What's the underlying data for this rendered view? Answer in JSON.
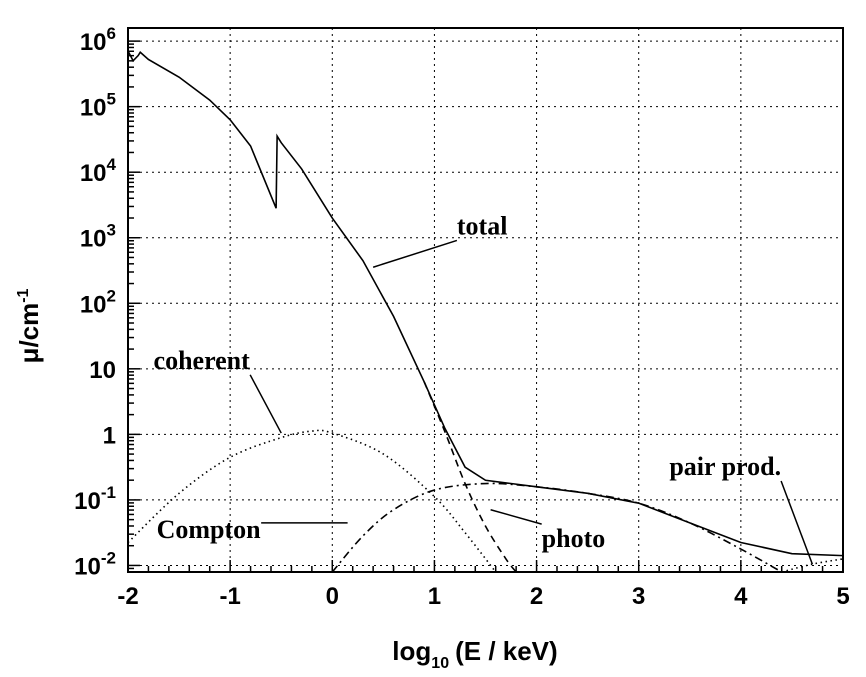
{
  "chart_data": {
    "type": "line",
    "title": "",
    "xlabel": {
      "prefix": "log",
      "sub": "10",
      "suffix": "(E / keV)"
    },
    "ylabel": {
      "base": "μ/cm",
      "sup": "-1"
    },
    "xlim": [
      -2,
      5
    ],
    "ylim_log10": [
      -2.1,
      6.2
    ],
    "yscale": "log",
    "grid": true,
    "x_ticks": [
      "-2",
      "-1",
      "0",
      "1",
      "2",
      "3",
      "4",
      "5"
    ],
    "y_ticks": [
      {
        "log": 6,
        "base": "10",
        "sup": "6"
      },
      {
        "log": 5,
        "base": "10",
        "sup": "5"
      },
      {
        "log": 4,
        "base": "10",
        "sup": "4"
      },
      {
        "log": 3,
        "base": "10",
        "sup": "3"
      },
      {
        "log": 2,
        "base": "10",
        "sup": "2"
      },
      {
        "log": 1,
        "base": "10",
        "sup": ""
      },
      {
        "log": 0,
        "base": "1",
        "sup": ""
      },
      {
        "log": -1,
        "base": "10",
        "sup": "-1"
      },
      {
        "log": -2,
        "base": "10",
        "sup": "-2"
      }
    ],
    "series": [
      {
        "name": "total",
        "style": "solid",
        "points_log10": [
          [
            -2,
            5.85
          ],
          [
            -1.95,
            5.7
          ],
          [
            -1.9,
            5.78
          ],
          [
            -1.88,
            5.83
          ],
          [
            -1.8,
            5.72
          ],
          [
            -1.5,
            5.45
          ],
          [
            -1.2,
            5.1
          ],
          [
            -1.0,
            4.8
          ],
          [
            -0.8,
            4.4
          ],
          [
            -0.55,
            3.45
          ],
          [
            -0.54,
            4.55
          ],
          [
            -0.5,
            4.45
          ],
          [
            -0.3,
            4.05
          ],
          [
            0,
            3.3
          ],
          [
            0.3,
            2.65
          ],
          [
            0.6,
            1.8
          ],
          [
            0.9,
            0.8
          ],
          [
            1.1,
            0.1
          ],
          [
            1.3,
            -0.5
          ],
          [
            1.5,
            -0.7
          ],
          [
            2.0,
            -0.8
          ],
          [
            2.5,
            -0.9
          ],
          [
            3.0,
            -1.05
          ],
          [
            3.5,
            -1.35
          ],
          [
            4.0,
            -1.65
          ],
          [
            4.5,
            -1.82
          ],
          [
            5.0,
            -1.85
          ]
        ]
      },
      {
        "name": "photo",
        "style": "dashed",
        "points_log10": [
          [
            0.9,
            0.8
          ],
          [
            1.1,
            0.05
          ],
          [
            1.3,
            -0.75
          ],
          [
            1.5,
            -1.4
          ],
          [
            1.7,
            -1.9
          ],
          [
            1.8,
            -2.1
          ]
        ]
      },
      {
        "name": "coherent",
        "style": "dotted",
        "points_log10": [
          [
            -2,
            -1.65
          ],
          [
            -1.5,
            -0.9
          ],
          [
            -1.0,
            -0.35
          ],
          [
            -0.5,
            -0.05
          ],
          [
            -0.2,
            0.05
          ],
          [
            0,
            0.02
          ],
          [
            0.5,
            -0.3
          ],
          [
            1.0,
            -0.95
          ],
          [
            1.3,
            -1.5
          ],
          [
            1.6,
            -2.1
          ]
        ]
      },
      {
        "name": "Compton",
        "style": "dashdot",
        "points_log10": [
          [
            0,
            -2.1
          ],
          [
            0.3,
            -1.55
          ],
          [
            0.6,
            -1.15
          ],
          [
            1.0,
            -0.85
          ],
          [
            1.5,
            -0.75
          ],
          [
            2.0,
            -0.8
          ],
          [
            2.5,
            -0.9
          ],
          [
            3.0,
            -1.05
          ],
          [
            3.5,
            -1.35
          ],
          [
            4.0,
            -1.75
          ],
          [
            4.4,
            -2.1
          ]
        ]
      },
      {
        "name": "pair prod.",
        "style": "dotted",
        "points_log10": [
          [
            4.4,
            -2.1
          ],
          [
            4.7,
            -1.98
          ],
          [
            5.0,
            -1.9
          ]
        ]
      }
    ],
    "annotations": [
      {
        "text": "total",
        "text_pos": [
          1.22,
          3.05
        ],
        "target": [
          0.4,
          2.55
        ]
      },
      {
        "text": "coherent",
        "text_pos": [
          -1.75,
          1.0
        ],
        "target": [
          -0.5,
          0.02
        ]
      },
      {
        "text": "Compton",
        "text_pos": [
          -1.72,
          -1.58
        ],
        "target": [
          0.15,
          -1.35
        ]
      },
      {
        "text": "photo",
        "text_pos": [
          2.05,
          -1.72
        ],
        "target": [
          1.55,
          -1.15
        ]
      },
      {
        "text": "pair prod.",
        "text_pos": [
          3.3,
          -0.62
        ],
        "target": [
          4.7,
          -1.98
        ]
      }
    ]
  }
}
